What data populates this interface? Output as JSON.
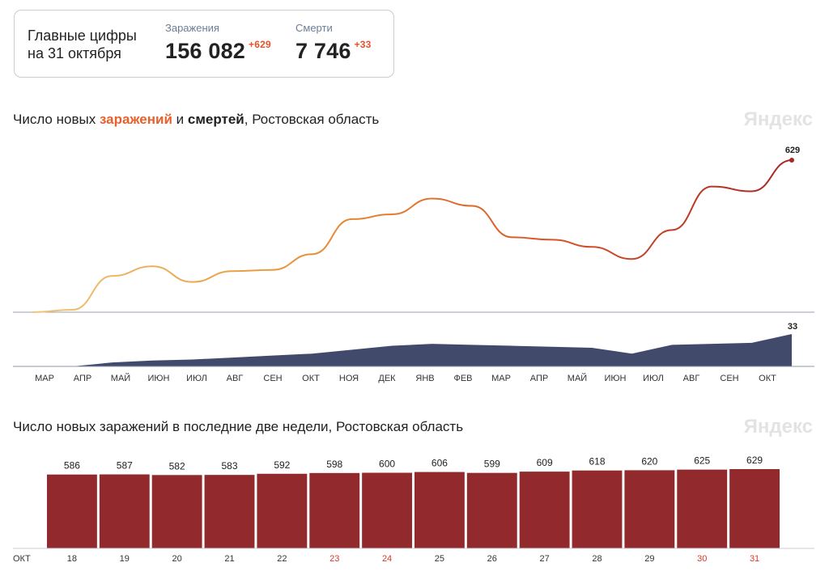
{
  "summary": {
    "heading_line1": "Главные цифры",
    "heading_line2": "на 31 октября",
    "infections": {
      "label": "Заражения",
      "value": "156 082",
      "delta": "+629"
    },
    "deaths": {
      "label": "Смерти",
      "value": "7 746",
      "delta": "+33"
    }
  },
  "brand": "Яндекс",
  "chart1": {
    "title_prefix": "Число новых ",
    "title_infections": "заражений",
    "title_mid": " и ",
    "title_deaths": "смертей",
    "title_suffix": ", Ростовская область"
  },
  "chart2": {
    "title": "Число новых заражений в последние две недели, Ростовская область"
  },
  "colors": {
    "infections_gradient": [
      "#f0c47a",
      "#e8963a",
      "#d9582a",
      "#a82626"
    ],
    "deaths_area": "#414a6b",
    "bars": "#922a2d",
    "weekend_label": "#d63a2a",
    "axis": "#8d97a8"
  },
  "chart_data": [
    {
      "type": "line",
      "title": "Число новых заражений и смертей, Ростовская область",
      "series": [
        {
          "name": "заражения",
          "x": [
            "2020-03",
            "2020-04",
            "2020-05",
            "2020-06",
            "2020-07",
            "2020-08",
            "2020-09",
            "2020-10",
            "2020-11",
            "2020-12",
            "2021-01",
            "2021-02",
            "2021-03",
            "2021-04",
            "2021-05",
            "2021-06",
            "2021-07",
            "2021-08",
            "2021-09",
            "2021-10-31"
          ],
          "values": [
            0,
            10,
            150,
            190,
            125,
            170,
            175,
            240,
            385,
            405,
            470,
            440,
            310,
            300,
            270,
            220,
            340,
            520,
            500,
            629
          ],
          "end_label": "629"
        },
        {
          "name": "смерти",
          "x": [
            "2020-03",
            "2020-04",
            "2020-05",
            "2020-06",
            "2020-07",
            "2020-08",
            "2020-09",
            "2020-10",
            "2020-11",
            "2020-12",
            "2021-01",
            "2021-02",
            "2021-03",
            "2021-04",
            "2021-05",
            "2021-06",
            "2021-07",
            "2021-08",
            "2021-09",
            "2021-10-31"
          ],
          "values": [
            0,
            0,
            4,
            6,
            7,
            9,
            11,
            13,
            17,
            21,
            23,
            22,
            21,
            20,
            19,
            13,
            22,
            23,
            24,
            33
          ],
          "end_label": "33"
        }
      ],
      "x_tick_labels": [
        "МАР",
        "АПР",
        "МАЙ",
        "ИЮН",
        "ИЮЛ",
        "АВГ",
        "СЕН",
        "ОКТ",
        "НОЯ",
        "ДЕК",
        "ЯНВ",
        "ФЕВ",
        "МАР",
        "АПР",
        "МАЙ",
        "ИЮН",
        "ИЮЛ",
        "АВГ",
        "СЕН",
        "ОКТ"
      ]
    },
    {
      "type": "bar",
      "title": "Число новых заражений в последние две недели, Ростовская область",
      "month_label": "ОКТ",
      "categories": [
        "18",
        "19",
        "20",
        "21",
        "22",
        "23",
        "24",
        "25",
        "26",
        "27",
        "28",
        "29",
        "30",
        "31"
      ],
      "values": [
        586,
        587,
        582,
        583,
        592,
        598,
        600,
        606,
        599,
        609,
        618,
        620,
        625,
        629
      ],
      "weekend": [
        false,
        false,
        false,
        false,
        false,
        true,
        true,
        false,
        false,
        false,
        false,
        false,
        true,
        true
      ]
    }
  ]
}
